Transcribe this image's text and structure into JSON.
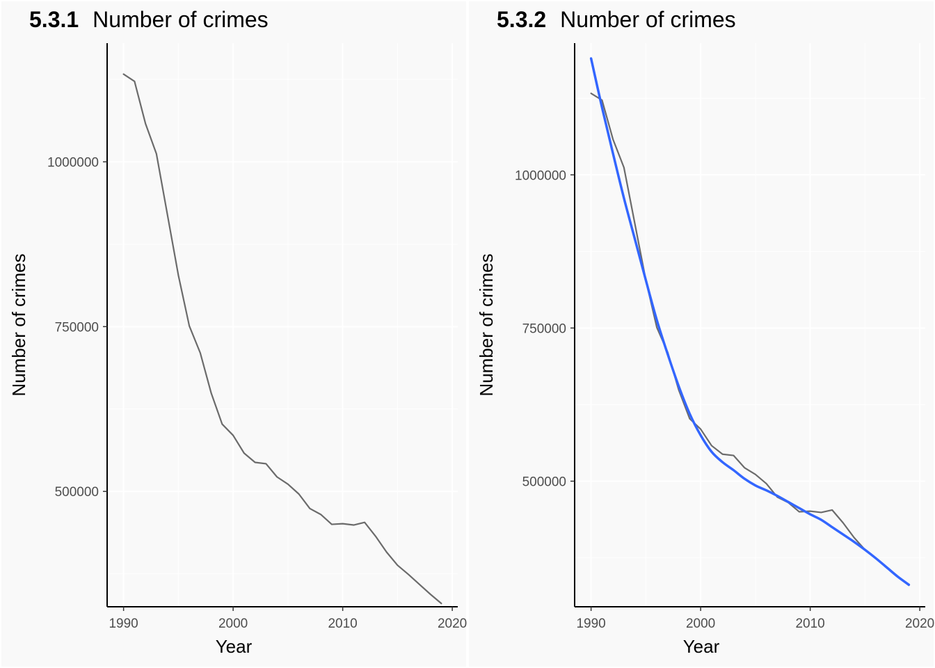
{
  "chart_data": [
    {
      "type": "line",
      "tag": "5.3.1",
      "title": "Number of crimes",
      "xlabel": "Year",
      "ylabel": "Number of crimes",
      "xlim": [
        1988.5,
        2020.5
      ],
      "ylim": [
        325000,
        1180000
      ],
      "xticks": [
        1990,
        2000,
        2010,
        2020
      ],
      "xtick_labels": [
        "1990",
        "2000",
        "2010",
        "2020"
      ],
      "yticks": [
        500000,
        750000,
        1000000
      ],
      "ytick_labels": [
        "500000",
        "750000",
        "1000000"
      ],
      "grid": true,
      "series": [
        {
          "color": "#6b6b6b",
          "x": [
            1990,
            1991,
            1992,
            1993,
            1994,
            1995,
            1996,
            1997,
            1998,
            1999,
            2000,
            2001,
            2002,
            2003,
            2004,
            2005,
            2006,
            2007,
            2008,
            2009,
            2010,
            2011,
            2012,
            2013,
            2014,
            2015,
            2016,
            2017,
            2018,
            2019
          ],
          "y": [
            1133000,
            1122000,
            1058000,
            1012000,
            920000,
            828000,
            751000,
            710000,
            649000,
            602000,
            585000,
            558000,
            544000,
            542000,
            522000,
            511000,
            496000,
            474000,
            465000,
            450000,
            451000,
            449000,
            453000,
            432000,
            408000,
            388000,
            374000,
            359000,
            344000,
            330000
          ]
        }
      ]
    },
    {
      "type": "line",
      "tag": "5.3.2",
      "title": "Number of crimes",
      "xlabel": "Year",
      "ylabel": "Number of crimes",
      "xlim": [
        1988.5,
        2020.5
      ],
      "ylim": [
        295000,
        1215000
      ],
      "xticks": [
        1990,
        2000,
        2010,
        2020
      ],
      "xtick_labels": [
        "1990",
        "2000",
        "2010",
        "2020"
      ],
      "yticks": [
        500000,
        750000,
        1000000
      ],
      "ytick_labels": [
        "500000",
        "750000",
        "1000000"
      ],
      "grid": true,
      "series": [
        {
          "color": "#6b6b6b",
          "x": [
            1990,
            1991,
            1992,
            1993,
            1994,
            1995,
            1996,
            1997,
            1998,
            1999,
            2000,
            2001,
            2002,
            2003,
            2004,
            2005,
            2006,
            2007,
            2008,
            2009,
            2010,
            2011,
            2012,
            2013,
            2014,
            2015,
            2016,
            2017,
            2018,
            2019
          ],
          "y": [
            1133000,
            1122000,
            1058000,
            1012000,
            920000,
            828000,
            751000,
            710000,
            649000,
            602000,
            585000,
            558000,
            544000,
            542000,
            522000,
            511000,
            496000,
            474000,
            465000,
            450000,
            451000,
            449000,
            453000,
            432000,
            408000,
            388000,
            374000,
            359000,
            344000,
            330000
          ]
        },
        {
          "color": "#3366ff",
          "smooth": true,
          "x": [
            1990,
            1991,
            1992,
            1993,
            1994,
            1995,
            1996,
            1997,
            1998,
            1999,
            2000,
            2001,
            2002,
            2003,
            2004,
            2005,
            2006,
            2007,
            2008,
            2009,
            2010,
            2011,
            2012,
            2013,
            2014,
            2015,
            2016,
            2017,
            2018,
            2019
          ],
          "y": [
            1190000,
            1110000,
            1035000,
            962000,
            895000,
            828000,
            763000,
            707000,
            655000,
            610000,
            575000,
            548000,
            531000,
            518000,
            504000,
            493000,
            485000,
            476000,
            466000,
            456000,
            446000,
            437000,
            425000,
            413000,
            401000,
            388000,
            374000,
            359000,
            344000,
            331000
          ]
        }
      ]
    }
  ]
}
